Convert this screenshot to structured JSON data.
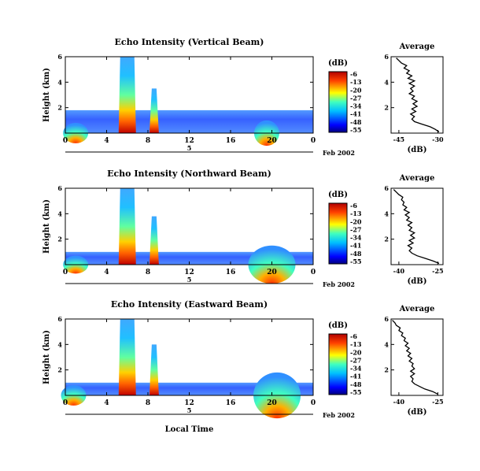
{
  "figure": {
    "x_axis_label": "Local Time",
    "date_label": "Feb 2002",
    "day_marker": "5",
    "x_ticks": [
      "0",
      "4",
      "8",
      "12",
      "16",
      "20",
      "0"
    ],
    "colorbar_unit": "(dB)",
    "colorbar_ticks": [
      "-6",
      "-13",
      "-20",
      "-27",
      "-34",
      "-41",
      "-48",
      "-55"
    ]
  },
  "chart_data": [
    {
      "type": "heatmap",
      "title": "Echo Intensity (Vertical Beam)",
      "xlabel": "",
      "ylabel": "Height (km)",
      "xlim": [
        0,
        24
      ],
      "ylim": [
        0,
        6
      ],
      "y_ticks": [
        "2",
        "4",
        "6"
      ],
      "zlabel": "(dB)",
      "zlim": [
        -55,
        -6
      ],
      "features": [
        {
          "kind": "background_layer",
          "y_top_km": 1.8,
          "level_db": -45
        },
        {
          "kind": "plume",
          "x_center_h": 6.0,
          "top_km": 6.0,
          "peak_db": -6
        },
        {
          "kind": "plume",
          "x_center_h": 8.6,
          "top_km": 3.5,
          "peak_db": -8
        },
        {
          "kind": "surface_patch",
          "x_center_h": 1.0,
          "top_km": 0.8,
          "peak_db": -10
        },
        {
          "kind": "surface_patch",
          "x_center_h": 19.5,
          "top_km": 1.0,
          "peak_db": -12
        }
      ]
    },
    {
      "type": "line",
      "title": "Average",
      "xlabel": "(dB)",
      "ylabel": "",
      "x_ticks": [
        "-45",
        "-30"
      ],
      "y_ticks": [
        "2",
        "4",
        "6"
      ],
      "xlim": [
        -48,
        -28
      ],
      "ylim": [
        0,
        6
      ],
      "series": [
        {
          "x": [
            -29.5,
            -31,
            -33,
            -36,
            -39,
            -40,
            -39,
            -40.5,
            -38.5,
            -40,
            -38,
            -39.5,
            -38,
            -40,
            -39,
            -41,
            -39.5,
            -40.5,
            -39,
            -41,
            -39,
            -41.5,
            -40,
            -42,
            -41,
            -43,
            -42,
            -44,
            -45,
            -46
          ],
          "y": [
            0.1,
            0.3,
            0.5,
            0.7,
            0.9,
            1.1,
            1.3,
            1.5,
            1.7,
            1.9,
            2.1,
            2.3,
            2.5,
            2.7,
            2.9,
            3.1,
            3.3,
            3.5,
            3.7,
            3.9,
            4.1,
            4.3,
            4.5,
            4.7,
            4.9,
            5.1,
            5.3,
            5.5,
            5.7,
            5.9
          ]
        }
      ]
    },
    {
      "type": "heatmap",
      "title": "Echo Intensity (Northward Beam)",
      "xlabel": "",
      "ylabel": "Height (km)",
      "xlim": [
        0,
        24
      ],
      "ylim": [
        0,
        6
      ],
      "y_ticks": [
        "2",
        "4",
        "6"
      ],
      "zlabel": "(dB)",
      "zlim": [
        -55,
        -6
      ],
      "features": [
        {
          "kind": "background_layer",
          "y_top_km": 1.0,
          "level_db": -45
        },
        {
          "kind": "plume",
          "x_center_h": 6.0,
          "top_km": 6.0,
          "peak_db": -6
        },
        {
          "kind": "plume",
          "x_center_h": 8.6,
          "top_km": 3.8,
          "peak_db": -8
        },
        {
          "kind": "surface_patch",
          "x_center_h": 1.0,
          "top_km": 0.7,
          "peak_db": -12
        },
        {
          "kind": "surface_patch",
          "x_center_h": 20.0,
          "top_km": 1.5,
          "peak_db": -12
        }
      ]
    },
    {
      "type": "line",
      "title": "Average",
      "xlabel": "(dB)",
      "ylabel": "",
      "x_ticks": [
        "-40",
        "-25"
      ],
      "y_ticks": [
        "2",
        "4",
        "6"
      ],
      "xlim": [
        -43,
        -23
      ],
      "ylim": [
        0,
        6
      ],
      "series": [
        {
          "x": [
            -24.5,
            -27,
            -30,
            -33,
            -35,
            -36,
            -35,
            -36.5,
            -34.5,
            -36,
            -34,
            -35.5,
            -34,
            -36,
            -35,
            -36.5,
            -35,
            -37,
            -36,
            -37.5,
            -36,
            -38,
            -37,
            -38.5,
            -38,
            -39,
            -38.5,
            -40,
            -41,
            -42
          ],
          "y": [
            0.1,
            0.3,
            0.5,
            0.7,
            0.9,
            1.1,
            1.3,
            1.5,
            1.7,
            1.9,
            2.1,
            2.3,
            2.5,
            2.7,
            2.9,
            3.1,
            3.3,
            3.5,
            3.7,
            3.9,
            4.1,
            4.3,
            4.5,
            4.7,
            4.9,
            5.1,
            5.3,
            5.5,
            5.7,
            5.9
          ]
        }
      ]
    },
    {
      "type": "heatmap",
      "title": "Echo Intensity (Eastward Beam)",
      "xlabel": "Local Time",
      "ylabel": "Height (km)",
      "xlim": [
        0,
        24
      ],
      "ylim": [
        0,
        6
      ],
      "y_ticks": [
        "2",
        "4",
        "6"
      ],
      "zlabel": "(dB)",
      "zlim": [
        -55,
        -6
      ],
      "features": [
        {
          "kind": "background_layer",
          "y_top_km": 1.0,
          "level_db": -45
        },
        {
          "kind": "plume",
          "x_center_h": 6.0,
          "top_km": 6.0,
          "peak_db": -6
        },
        {
          "kind": "plume",
          "x_center_h": 8.6,
          "top_km": 4.0,
          "peak_db": -8
        },
        {
          "kind": "surface_patch",
          "x_center_h": 0.8,
          "top_km": 0.8,
          "peak_db": -15
        },
        {
          "kind": "surface_patch",
          "x_center_h": 20.5,
          "top_km": 1.8,
          "peak_db": -12
        }
      ]
    },
    {
      "type": "line",
      "title": "Average",
      "xlabel": "(dB)",
      "ylabel": "",
      "x_ticks": [
        "-40",
        "-25"
      ],
      "y_ticks": [
        "2",
        "4",
        "6"
      ],
      "xlim": [
        -43,
        -23
      ],
      "ylim": [
        0,
        6
      ],
      "series": [
        {
          "x": [
            -25,
            -27,
            -30,
            -32,
            -34,
            -35,
            -34.5,
            -35.5,
            -34,
            -35.5,
            -34,
            -35,
            -34.5,
            -36,
            -35,
            -36.5,
            -35.5,
            -37,
            -36,
            -37.5,
            -36.5,
            -38,
            -37.5,
            -39,
            -38.5,
            -40,
            -39.5,
            -41,
            -41.5,
            -42.5
          ],
          "y": [
            0.1,
            0.3,
            0.5,
            0.7,
            0.9,
            1.1,
            1.3,
            1.5,
            1.7,
            1.9,
            2.1,
            2.3,
            2.5,
            2.7,
            2.9,
            3.1,
            3.3,
            3.5,
            3.7,
            3.9,
            4.1,
            4.3,
            4.5,
            4.7,
            4.9,
            5.1,
            5.3,
            5.5,
            5.7,
            5.9
          ]
        }
      ]
    }
  ]
}
